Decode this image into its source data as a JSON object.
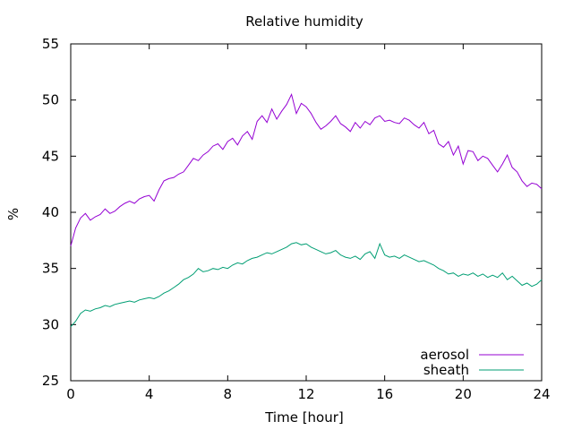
{
  "chart_data": {
    "type": "line",
    "title": "Relative humidity",
    "xlabel": "Time [hour]",
    "ylabel": "%",
    "xlim": [
      0,
      24
    ],
    "ylim": [
      25,
      55
    ],
    "xticks": [
      0,
      4,
      8,
      12,
      16,
      20,
      24
    ],
    "yticks": [
      25,
      30,
      35,
      40,
      45,
      50,
      55
    ],
    "grid": false,
    "legend_position": "bottom-right",
    "series": [
      {
        "name": "aerosol",
        "color": "#9400d3",
        "x": [
          0,
          0.25,
          0.5,
          0.75,
          1,
          1.25,
          1.5,
          1.75,
          2,
          2.25,
          2.5,
          2.75,
          3,
          3.25,
          3.5,
          3.75,
          4,
          4.25,
          4.5,
          4.75,
          5,
          5.25,
          5.5,
          5.75,
          6,
          6.25,
          6.5,
          6.75,
          7,
          7.25,
          7.5,
          7.75,
          8,
          8.25,
          8.5,
          8.75,
          9,
          9.25,
          9.5,
          9.75,
          10,
          10.25,
          10.5,
          10.75,
          11,
          11.25,
          11.5,
          11.75,
          12,
          12.25,
          12.5,
          12.75,
          13,
          13.25,
          13.5,
          13.75,
          14,
          14.25,
          14.5,
          14.75,
          15,
          15.25,
          15.5,
          15.75,
          16,
          16.25,
          16.5,
          16.75,
          17,
          17.25,
          17.5,
          17.75,
          18,
          18.25,
          18.5,
          18.75,
          19,
          19.25,
          19.5,
          19.75,
          20,
          20.25,
          20.5,
          20.75,
          21,
          21.25,
          21.5,
          21.75,
          22,
          22.25,
          22.5,
          22.75,
          23,
          23.25,
          23.5,
          23.75,
          24
        ],
        "values": [
          37.0,
          38.6,
          39.5,
          39.9,
          39.3,
          39.6,
          39.8,
          40.3,
          39.9,
          40.1,
          40.5,
          40.8,
          41.0,
          40.8,
          41.2,
          41.4,
          41.5,
          41.0,
          42.0,
          42.8,
          43.0,
          43.1,
          43.4,
          43.6,
          44.2,
          44.8,
          44.6,
          45.1,
          45.4,
          45.9,
          46.1,
          45.6,
          46.3,
          46.6,
          46.0,
          46.8,
          47.2,
          46.5,
          48.1,
          48.6,
          48.0,
          49.2,
          48.3,
          49.0,
          49.6,
          50.5,
          48.8,
          49.7,
          49.4,
          48.8,
          48.0,
          47.4,
          47.7,
          48.1,
          48.6,
          47.9,
          47.6,
          47.2,
          48.0,
          47.5,
          48.1,
          47.8,
          48.4,
          48.6,
          48.1,
          48.2,
          48.0,
          47.9,
          48.4,
          48.2,
          47.8,
          47.5,
          48.0,
          47.0,
          47.3,
          46.1,
          45.8,
          46.3,
          45.1,
          45.9,
          44.3,
          45.5,
          45.4,
          44.6,
          45.0,
          44.8,
          44.2,
          43.6,
          44.3,
          45.1,
          44.0,
          43.6,
          42.8,
          42.3,
          42.6,
          42.5,
          42.1
        ]
      },
      {
        "name": "sheath",
        "color": "#009e73",
        "x": [
          0,
          0.25,
          0.5,
          0.75,
          1,
          1.25,
          1.5,
          1.75,
          2,
          2.25,
          2.5,
          2.75,
          3,
          3.25,
          3.5,
          3.75,
          4,
          4.25,
          4.5,
          4.75,
          5,
          5.25,
          5.5,
          5.75,
          6,
          6.25,
          6.5,
          6.75,
          7,
          7.25,
          7.5,
          7.75,
          8,
          8.25,
          8.5,
          8.75,
          9,
          9.25,
          9.5,
          9.75,
          10,
          10.25,
          10.5,
          10.75,
          11,
          11.25,
          11.5,
          11.75,
          12,
          12.25,
          12.5,
          12.75,
          13,
          13.25,
          13.5,
          13.75,
          14,
          14.25,
          14.5,
          14.75,
          15,
          15.25,
          15.5,
          15.75,
          16,
          16.25,
          16.5,
          16.75,
          17,
          17.25,
          17.5,
          17.75,
          18,
          18.25,
          18.5,
          18.75,
          19,
          19.25,
          19.5,
          19.75,
          20,
          20.25,
          20.5,
          20.75,
          21,
          21.25,
          21.5,
          21.75,
          22,
          22.25,
          22.5,
          22.75,
          23,
          23.25,
          23.5,
          23.75,
          24
        ],
        "values": [
          29.8,
          30.3,
          31.0,
          31.3,
          31.2,
          31.4,
          31.5,
          31.7,
          31.6,
          31.8,
          31.9,
          32.0,
          32.1,
          32.0,
          32.2,
          32.3,
          32.4,
          32.3,
          32.5,
          32.8,
          33.0,
          33.3,
          33.6,
          34.0,
          34.2,
          34.5,
          35.0,
          34.7,
          34.8,
          35.0,
          34.9,
          35.1,
          35.0,
          35.3,
          35.5,
          35.4,
          35.7,
          35.9,
          36.0,
          36.2,
          36.4,
          36.3,
          36.5,
          36.7,
          36.9,
          37.2,
          37.3,
          37.1,
          37.2,
          36.9,
          36.7,
          36.5,
          36.3,
          36.4,
          36.6,
          36.2,
          36.0,
          35.9,
          36.1,
          35.8,
          36.3,
          36.5,
          35.9,
          37.2,
          36.2,
          36.0,
          36.1,
          35.9,
          36.2,
          36.0,
          35.8,
          35.6,
          35.7,
          35.5,
          35.3,
          35.0,
          34.8,
          34.5,
          34.6,
          34.3,
          34.5,
          34.4,
          34.6,
          34.3,
          34.5,
          34.2,
          34.4,
          34.2,
          34.6,
          34.0,
          34.3,
          33.9,
          33.5,
          33.7,
          33.4,
          33.6,
          34.0
        ]
      }
    ]
  }
}
